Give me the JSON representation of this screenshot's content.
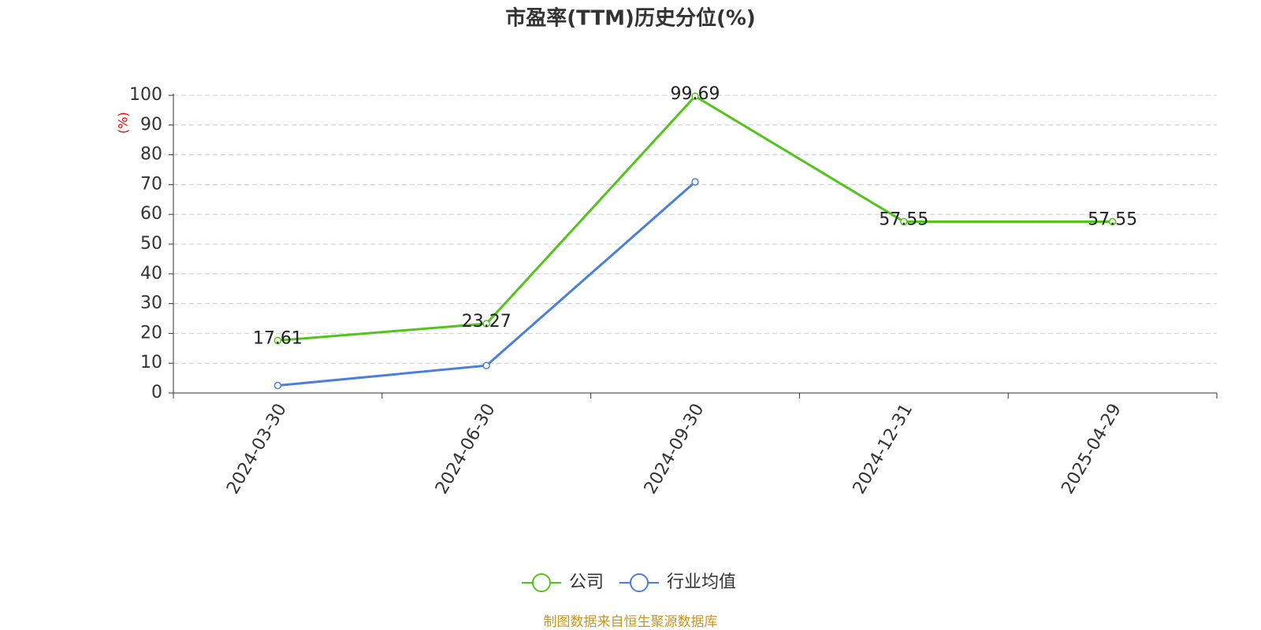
{
  "chart_data": {
    "type": "line",
    "title": "市盈率(TTM)历史分位(%)",
    "y_label": "(%)",
    "categories": [
      "2024-03-30",
      "2024-06-30",
      "2024-09-30",
      "2024-12-31",
      "2025-04-29"
    ],
    "series": [
      {
        "name": "公司",
        "color": "#52c41a",
        "values": [
          17.61,
          23.27,
          99.69,
          57.55,
          57.55
        ],
        "show_labels": true
      },
      {
        "name": "行业均值",
        "color": "#4a7fdc",
        "values": [
          2.5,
          9.2,
          70.9,
          null,
          null
        ],
        "show_labels": false
      }
    ],
    "ylim": [
      0,
      100
    ],
    "yticks": [
      0,
      10,
      20,
      30,
      40,
      50,
      60,
      70,
      80,
      90,
      100
    ],
    "grid": true,
    "legend": "bottom",
    "source": "制图数据来自恒生聚源数据库"
  }
}
